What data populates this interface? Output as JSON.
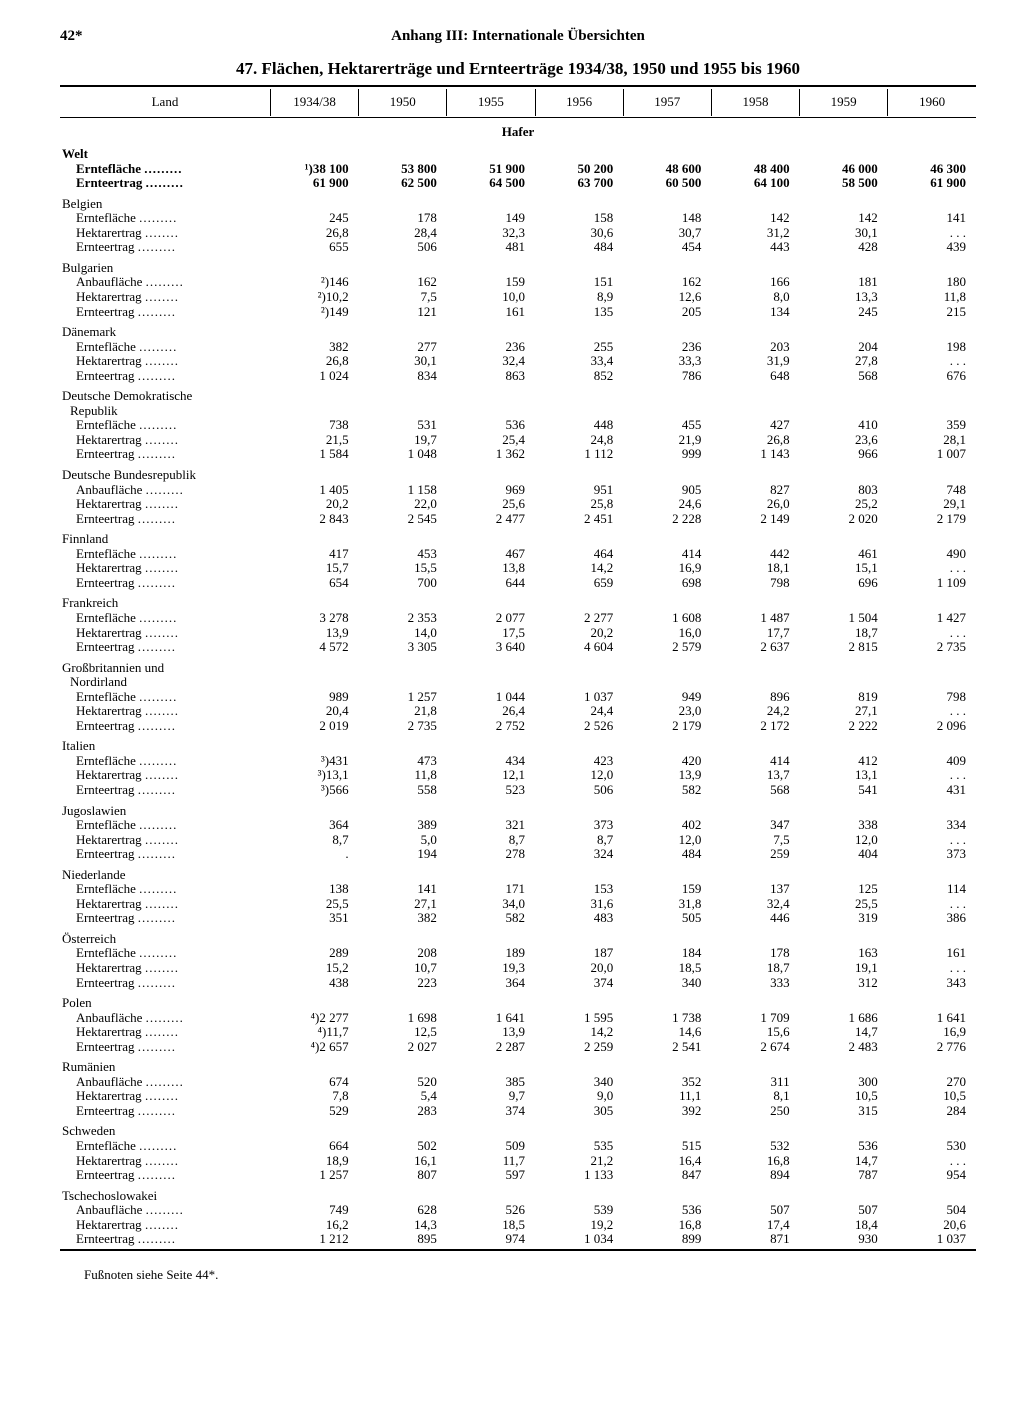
{
  "page_number": "42*",
  "running_title": "Anhang III: Internationale Übersichten",
  "table_title": "47. Flächen, Hektarerträge und Ernteerträge 1934/38, 1950 und 1955 bis 1960",
  "stub_header": "Land",
  "year_headers": [
    "1934/38",
    "1950",
    "1955",
    "1956",
    "1957",
    "1958",
    "1959",
    "1960"
  ],
  "section": "Hafer",
  "footnote": "Fußnoten siehe Seite 44*.",
  "countries": [
    {
      "name": "Welt",
      "bold": true,
      "rows": [
        {
          "label": "Erntefläche",
          "values": [
            "¹)38 100",
            "53 800",
            "51 900",
            "50 200",
            "48 600",
            "48 400",
            "46 000",
            "46 300"
          ]
        },
        {
          "label": "Ernteertrag",
          "values": [
            "61 900",
            "62 500",
            "64 500",
            "63 700",
            "60 500",
            "64 100",
            "58 500",
            "61 900"
          ]
        }
      ]
    },
    {
      "name": "Belgien",
      "rows": [
        {
          "label": "Erntefläche",
          "values": [
            "245",
            "178",
            "149",
            "158",
            "148",
            "142",
            "142",
            "141"
          ]
        },
        {
          "label": "Hektarertrag",
          "values": [
            "26,8",
            "28,4",
            "32,3",
            "30,6",
            "30,7",
            "31,2",
            "30,1",
            ". . ."
          ]
        },
        {
          "label": "Ernteertrag",
          "values": [
            "655",
            "506",
            "481",
            "484",
            "454",
            "443",
            "428",
            "439"
          ]
        }
      ]
    },
    {
      "name": "Bulgarien",
      "rows": [
        {
          "label": "Anbaufläche",
          "values": [
            "²)146",
            "162",
            "159",
            "151",
            "162",
            "166",
            "181",
            "180"
          ]
        },
        {
          "label": "Hektarertrag",
          "values": [
            "²)10,2",
            "7,5",
            "10,0",
            "8,9",
            "12,6",
            "8,0",
            "13,3",
            "11,8"
          ]
        },
        {
          "label": "Ernteertrag",
          "values": [
            "²)149",
            "121",
            "161",
            "135",
            "205",
            "134",
            "245",
            "215"
          ]
        }
      ]
    },
    {
      "name": "Dänemark",
      "rows": [
        {
          "label": "Erntefläche",
          "values": [
            "382",
            "277",
            "236",
            "255",
            "236",
            "203",
            "204",
            "198"
          ]
        },
        {
          "label": "Hektarertrag",
          "values": [
            "26,8",
            "30,1",
            "32,4",
            "33,4",
            "33,3",
            "31,9",
            "27,8",
            ". . ."
          ]
        },
        {
          "label": "Ernteertrag",
          "values": [
            "1 024",
            "834",
            "863",
            "852",
            "786",
            "648",
            "568",
            "676"
          ]
        }
      ]
    },
    {
      "name": "Deutsche Demokratische Republik",
      "wrap": true,
      "rows": [
        {
          "label": "Erntefläche",
          "values": [
            "738",
            "531",
            "536",
            "448",
            "455",
            "427",
            "410",
            "359"
          ]
        },
        {
          "label": "Hektarertrag",
          "values": [
            "21,5",
            "19,7",
            "25,4",
            "24,8",
            "21,9",
            "26,8",
            "23,6",
            "28,1"
          ]
        },
        {
          "label": "Ernteertrag",
          "values": [
            "1 584",
            "1 048",
            "1 362",
            "1 112",
            "999",
            "1 143",
            "966",
            "1 007"
          ]
        }
      ]
    },
    {
      "name": "Deutsche Bundesrepublik",
      "rows": [
        {
          "label": "Anbaufläche",
          "values": [
            "1 405",
            "1 158",
            "969",
            "951",
            "905",
            "827",
            "803",
            "748"
          ]
        },
        {
          "label": "Hektarertrag",
          "values": [
            "20,2",
            "22,0",
            "25,6",
            "25,8",
            "24,6",
            "26,0",
            "25,2",
            "29,1"
          ]
        },
        {
          "label": "Ernteertrag",
          "values": [
            "2 843",
            "2 545",
            "2 477",
            "2 451",
            "2 228",
            "2 149",
            "2 020",
            "2 179"
          ]
        }
      ]
    },
    {
      "name": "Finnland",
      "rows": [
        {
          "label": "Erntefläche",
          "values": [
            "417",
            "453",
            "467",
            "464",
            "414",
            "442",
            "461",
            "490"
          ]
        },
        {
          "label": "Hektarertrag",
          "values": [
            "15,7",
            "15,5",
            "13,8",
            "14,2",
            "16,9",
            "18,1",
            "15,1",
            ". . ."
          ]
        },
        {
          "label": "Ernteertrag",
          "values": [
            "654",
            "700",
            "644",
            "659",
            "698",
            "798",
            "696",
            "1 109"
          ]
        }
      ]
    },
    {
      "name": "Frankreich",
      "rows": [
        {
          "label": "Erntefläche",
          "values": [
            "3 278",
            "2 353",
            "2 077",
            "2 277",
            "1 608",
            "1 487",
            "1 504",
            "1 427"
          ]
        },
        {
          "label": "Hektarertrag",
          "values": [
            "13,9",
            "14,0",
            "17,5",
            "20,2",
            "16,0",
            "17,7",
            "18,7",
            ". . ."
          ]
        },
        {
          "label": "Ernteertrag",
          "values": [
            "4 572",
            "3 305",
            "3 640",
            "4 604",
            "2 579",
            "2 637",
            "2 815",
            "2 735"
          ]
        }
      ]
    },
    {
      "name": "Großbritannien und Nordirland",
      "wrap": true,
      "rows": [
        {
          "label": "Erntefläche",
          "values": [
            "989",
            "1 257",
            "1 044",
            "1 037",
            "949",
            "896",
            "819",
            "798"
          ]
        },
        {
          "label": "Hektarertrag",
          "values": [
            "20,4",
            "21,8",
            "26,4",
            "24,4",
            "23,0",
            "24,2",
            "27,1",
            ". . ."
          ]
        },
        {
          "label": "Ernteertrag",
          "values": [
            "2 019",
            "2 735",
            "2 752",
            "2 526",
            "2 179",
            "2 172",
            "2 222",
            "2 096"
          ]
        }
      ]
    },
    {
      "name": "Italien",
      "rows": [
        {
          "label": "Erntefläche",
          "values": [
            "³)431",
            "473",
            "434",
            "423",
            "420",
            "414",
            "412",
            "409"
          ]
        },
        {
          "label": "Hektarertrag",
          "values": [
            "³)13,1",
            "11,8",
            "12,1",
            "12,0",
            "13,9",
            "13,7",
            "13,1",
            ". . ."
          ]
        },
        {
          "label": "Ernteertrag",
          "values": [
            "³)566",
            "558",
            "523",
            "506",
            "582",
            "568",
            "541",
            "431"
          ]
        }
      ]
    },
    {
      "name": "Jugoslawien",
      "rows": [
        {
          "label": "Erntefläche",
          "values": [
            "364",
            "389",
            "321",
            "373",
            "402",
            "347",
            "338",
            "334"
          ]
        },
        {
          "label": "Hektarertrag",
          "values": [
            "8,7",
            "5,0",
            "8,7",
            "8,7",
            "12,0",
            "7,5",
            "12,0",
            ". . ."
          ]
        },
        {
          "label": "Ernteertrag",
          "values": [
            ".",
            "194",
            "278",
            "324",
            "484",
            "259",
            "404",
            "373"
          ]
        }
      ]
    },
    {
      "name": "Niederlande",
      "rows": [
        {
          "label": "Erntefläche",
          "values": [
            "138",
            "141",
            "171",
            "153",
            "159",
            "137",
            "125",
            "114"
          ]
        },
        {
          "label": "Hektarertrag",
          "values": [
            "25,5",
            "27,1",
            "34,0",
            "31,6",
            "31,8",
            "32,4",
            "25,5",
            ". . ."
          ]
        },
        {
          "label": "Ernteertrag",
          "values": [
            "351",
            "382",
            "582",
            "483",
            "505",
            "446",
            "319",
            "386"
          ]
        }
      ]
    },
    {
      "name": "Österreich",
      "rows": [
        {
          "label": "Erntefläche",
          "values": [
            "289",
            "208",
            "189",
            "187",
            "184",
            "178",
            "163",
            "161"
          ]
        },
        {
          "label": "Hektarertrag",
          "values": [
            "15,2",
            "10,7",
            "19,3",
            "20,0",
            "18,5",
            "18,7",
            "19,1",
            ". . ."
          ]
        },
        {
          "label": "Ernteertrag",
          "values": [
            "438",
            "223",
            "364",
            "374",
            "340",
            "333",
            "312",
            "343"
          ]
        }
      ]
    },
    {
      "name": "Polen",
      "rows": [
        {
          "label": "Anbaufläche",
          "values": [
            "⁴)2 277",
            "1 698",
            "1 641",
            "1 595",
            "1 738",
            "1 709",
            "1 686",
            "1 641"
          ]
        },
        {
          "label": "Hektarertrag",
          "values": [
            "⁴)11,7",
            "12,5",
            "13,9",
            "14,2",
            "14,6",
            "15,6",
            "14,7",
            "16,9"
          ]
        },
        {
          "label": "Ernteertrag",
          "values": [
            "⁴)2 657",
            "2 027",
            "2 287",
            "2 259",
            "2 541",
            "2 674",
            "2 483",
            "2 776"
          ]
        }
      ]
    },
    {
      "name": "Rumänien",
      "rows": [
        {
          "label": "Anbaufläche",
          "values": [
            "674",
            "520",
            "385",
            "340",
            "352",
            "311",
            "300",
            "270"
          ]
        },
        {
          "label": "Hektarertrag",
          "values": [
            "7,8",
            "5,4",
            "9,7",
            "9,0",
            "11,1",
            "8,1",
            "10,5",
            "10,5"
          ]
        },
        {
          "label": "Ernteertrag",
          "values": [
            "529",
            "283",
            "374",
            "305",
            "392",
            "250",
            "315",
            "284"
          ]
        }
      ]
    },
    {
      "name": "Schweden",
      "rows": [
        {
          "label": "Erntefläche",
          "values": [
            "664",
            "502",
            "509",
            "535",
            "515",
            "532",
            "536",
            "530"
          ]
        },
        {
          "label": "Hektarertrag",
          "values": [
            "18,9",
            "16,1",
            "11,7",
            "21,2",
            "16,4",
            "16,8",
            "14,7",
            ". . ."
          ]
        },
        {
          "label": "Ernteertrag",
          "values": [
            "1 257",
            "807",
            "597",
            "1 133",
            "847",
            "894",
            "787",
            "954"
          ]
        }
      ]
    },
    {
      "name": "Tschechoslowakei",
      "rows": [
        {
          "label": "Anbaufläche",
          "values": [
            "749",
            "628",
            "526",
            "539",
            "536",
            "507",
            "507",
            "504"
          ]
        },
        {
          "label": "Hektarertrag",
          "values": [
            "16,2",
            "14,3",
            "18,5",
            "19,2",
            "16,8",
            "17,4",
            "18,4",
            "20,6"
          ]
        },
        {
          "label": "Ernteertrag",
          "values": [
            "1 212",
            "895",
            "974",
            "1 034",
            "899",
            "871",
            "930",
            "1 037"
          ]
        }
      ]
    }
  ]
}
